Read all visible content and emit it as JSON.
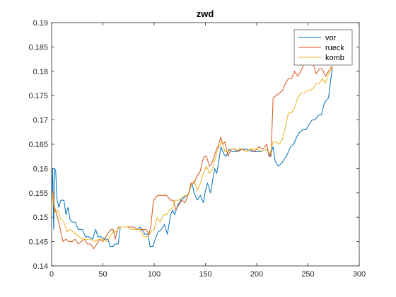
{
  "chart_data": {
    "type": "line",
    "title": "zwd",
    "xlabel": "",
    "ylabel": "",
    "xlim": [
      0,
      300
    ],
    "ylim": [
      0.14,
      0.19
    ],
    "xticks": [
      0,
      50,
      100,
      150,
      200,
      250,
      300
    ],
    "yticks": [
      0.14,
      0.145,
      0.15,
      0.155,
      0.16,
      0.165,
      0.17,
      0.175,
      0.18,
      0.185,
      0.19
    ],
    "ytick_labels": [
      "0.14",
      "0.145",
      "0.15",
      "0.155",
      "0.16",
      "0.165",
      "0.17",
      "0.175",
      "0.18",
      "0.185",
      "0.19"
    ],
    "grid": false,
    "legend_position": "top-right",
    "series": [
      {
        "name": "vor",
        "color": "#0072BD",
        "points": [
          [
            0,
            0.152
          ],
          [
            1,
            0.16
          ],
          [
            2,
            0.1475
          ],
          [
            3,
            0.16
          ],
          [
            4,
            0.1595
          ],
          [
            5,
            0.154
          ],
          [
            7,
            0.152
          ],
          [
            9,
            0.1535
          ],
          [
            12,
            0.1535
          ],
          [
            14,
            0.1505
          ],
          [
            16,
            0.152
          ],
          [
            18,
            0.1495
          ],
          [
            20,
            0.149
          ],
          [
            23,
            0.149
          ],
          [
            26,
            0.1475
          ],
          [
            30,
            0.1475
          ],
          [
            33,
            0.146
          ],
          [
            36,
            0.146
          ],
          [
            40,
            0.1455
          ],
          [
            43,
            0.1475
          ],
          [
            45,
            0.146
          ],
          [
            48,
            0.146
          ],
          [
            52,
            0.1455
          ],
          [
            55,
            0.1455
          ],
          [
            57,
            0.144
          ],
          [
            60,
            0.144
          ],
          [
            62,
            0.1445
          ],
          [
            65,
            0.1445
          ],
          [
            67,
            0.148
          ],
          [
            70,
            0.148
          ],
          [
            75,
            0.148
          ],
          [
            80,
            0.148
          ],
          [
            84,
            0.1475
          ],
          [
            86,
            0.148
          ],
          [
            88,
            0.1475
          ],
          [
            91,
            0.1465
          ],
          [
            94,
            0.1465
          ],
          [
            96,
            0.144
          ],
          [
            99,
            0.144
          ],
          [
            101,
            0.1455
          ],
          [
            104,
            0.147
          ],
          [
            107,
            0.1475
          ],
          [
            110,
            0.1485
          ],
          [
            113,
            0.1465
          ],
          [
            116,
            0.1505
          ],
          [
            118,
            0.1515
          ],
          [
            120,
            0.1505
          ],
          [
            123,
            0.1525
          ],
          [
            126,
            0.1535
          ],
          [
            129,
            0.154
          ],
          [
            132,
            0.1545
          ],
          [
            134,
            0.155
          ],
          [
            137,
            0.157
          ],
          [
            139,
            0.155
          ],
          [
            142,
            0.1535
          ],
          [
            145,
            0.1545
          ],
          [
            148,
            0.153
          ],
          [
            150,
            0.1555
          ],
          [
            152,
            0.157
          ],
          [
            155,
            0.155
          ],
          [
            157,
            0.1575
          ],
          [
            159,
            0.16
          ],
          [
            161,
            0.159
          ],
          [
            163,
            0.1615
          ],
          [
            165,
            0.1645
          ],
          [
            168,
            0.163
          ],
          [
            170,
            0.1625
          ],
          [
            173,
            0.164
          ],
          [
            176,
            0.1635
          ],
          [
            180,
            0.1635
          ],
          [
            185,
            0.164
          ],
          [
            190,
            0.164
          ],
          [
            195,
            0.1635
          ],
          [
            200,
            0.1635
          ],
          [
            205,
            0.1635
          ],
          [
            210,
            0.164
          ],
          [
            213,
            0.1625
          ],
          [
            216,
            0.1645
          ],
          [
            218,
            0.1615
          ],
          [
            221,
            0.1605
          ],
          [
            224,
            0.161
          ],
          [
            227,
            0.162
          ],
          [
            230,
            0.163
          ],
          [
            233,
            0.1645
          ],
          [
            236,
            0.165
          ],
          [
            239,
            0.1665
          ],
          [
            242,
            0.1675
          ],
          [
            245,
            0.168
          ],
          [
            248,
            0.168
          ],
          [
            251,
            0.169
          ],
          [
            254,
            0.17
          ],
          [
            257,
            0.17
          ],
          [
            260,
            0.171
          ],
          [
            263,
            0.171
          ],
          [
            266,
            0.1735
          ],
          [
            268,
            0.174
          ],
          [
            270,
            0.1745
          ],
          [
            272,
            0.178
          ],
          [
            274,
            0.181
          ]
        ]
      },
      {
        "name": "rueck",
        "color": "#D95319",
        "points": [
          [
            0,
            0.152
          ],
          [
            1,
            0.1555
          ],
          [
            3,
            0.152
          ],
          [
            5,
            0.1505
          ],
          [
            8,
            0.148
          ],
          [
            11,
            0.145
          ],
          [
            14,
            0.1455
          ],
          [
            17,
            0.145
          ],
          [
            20,
            0.145
          ],
          [
            23,
            0.1455
          ],
          [
            26,
            0.1445
          ],
          [
            29,
            0.145
          ],
          [
            32,
            0.1455
          ],
          [
            35,
            0.1445
          ],
          [
            38,
            0.1445
          ],
          [
            41,
            0.1435
          ],
          [
            44,
            0.1445
          ],
          [
            47,
            0.1455
          ],
          [
            50,
            0.145
          ],
          [
            53,
            0.146
          ],
          [
            56,
            0.147
          ],
          [
            58,
            0.1475
          ],
          [
            60,
            0.1475
          ],
          [
            62,
            0.1455
          ],
          [
            65,
            0.148
          ],
          [
            68,
            0.148
          ],
          [
            72,
            0.148
          ],
          [
            76,
            0.148
          ],
          [
            80,
            0.148
          ],
          [
            84,
            0.1475
          ],
          [
            88,
            0.1475
          ],
          [
            92,
            0.1475
          ],
          [
            95,
            0.1465
          ],
          [
            97,
            0.1485
          ],
          [
            99,
            0.153
          ],
          [
            101,
            0.154
          ],
          [
            104,
            0.1545
          ],
          [
            108,
            0.1545
          ],
          [
            112,
            0.1545
          ],
          [
            116,
            0.1535
          ],
          [
            119,
            0.1535
          ],
          [
            121,
            0.1515
          ],
          [
            124,
            0.1525
          ],
          [
            127,
            0.1535
          ],
          [
            130,
            0.153
          ],
          [
            133,
            0.1545
          ],
          [
            136,
            0.157
          ],
          [
            139,
            0.157
          ],
          [
            142,
            0.1585
          ],
          [
            145,
            0.1595
          ],
          [
            147,
            0.1615
          ],
          [
            149,
            0.1625
          ],
          [
            151,
            0.1625
          ],
          [
            154,
            0.1605
          ],
          [
            157,
            0.1615
          ],
          [
            160,
            0.1635
          ],
          [
            163,
            0.165
          ],
          [
            165,
            0.1665
          ],
          [
            167,
            0.165
          ],
          [
            169,
            0.1655
          ],
          [
            172,
            0.1625
          ],
          [
            175,
            0.164
          ],
          [
            178,
            0.164
          ],
          [
            182,
            0.1635
          ],
          [
            186,
            0.164
          ],
          [
            190,
            0.1635
          ],
          [
            194,
            0.164
          ],
          [
            198,
            0.1635
          ],
          [
            202,
            0.1645
          ],
          [
            206,
            0.164
          ],
          [
            210,
            0.165
          ],
          [
            212,
            0.1625
          ],
          [
            214,
            0.1625
          ],
          [
            216,
            0.1745
          ],
          [
            219,
            0.175
          ],
          [
            222,
            0.1755
          ],
          [
            225,
            0.176
          ],
          [
            228,
            0.1775
          ],
          [
            231,
            0.1785
          ],
          [
            234,
            0.1785
          ],
          [
            237,
            0.18
          ],
          [
            240,
            0.179
          ],
          [
            243,
            0.18
          ],
          [
            246,
            0.1815
          ],
          [
            249,
            0.1825
          ],
          [
            252,
            0.1825
          ],
          [
            255,
            0.1815
          ],
          [
            258,
            0.1795
          ],
          [
            261,
            0.1805
          ],
          [
            264,
            0.1805
          ],
          [
            267,
            0.179
          ],
          [
            270,
            0.18
          ],
          [
            273,
            0.181
          ]
        ]
      },
      {
        "name": "komb",
        "color": "#EDB120",
        "points": [
          [
            0,
            0.152
          ],
          [
            1,
            0.155
          ],
          [
            3,
            0.151
          ],
          [
            6,
            0.1515
          ],
          [
            9,
            0.1495
          ],
          [
            12,
            0.149
          ],
          [
            15,
            0.147
          ],
          [
            18,
            0.1475
          ],
          [
            21,
            0.147
          ],
          [
            24,
            0.1465
          ],
          [
            27,
            0.146
          ],
          [
            30,
            0.1455
          ],
          [
            34,
            0.1455
          ],
          [
            38,
            0.1455
          ],
          [
            42,
            0.145
          ],
          [
            46,
            0.1455
          ],
          [
            50,
            0.1455
          ],
          [
            54,
            0.145
          ],
          [
            57,
            0.146
          ],
          [
            60,
            0.147
          ],
          [
            63,
            0.147
          ],
          [
            66,
            0.148
          ],
          [
            70,
            0.148
          ],
          [
            74,
            0.148
          ],
          [
            78,
            0.1475
          ],
          [
            82,
            0.1475
          ],
          [
            86,
            0.1475
          ],
          [
            90,
            0.146
          ],
          [
            94,
            0.146
          ],
          [
            97,
            0.147
          ],
          [
            100,
            0.1475
          ],
          [
            103,
            0.15
          ],
          [
            106,
            0.149
          ],
          [
            109,
            0.1505
          ],
          [
            112,
            0.1505
          ],
          [
            115,
            0.1515
          ],
          [
            118,
            0.152
          ],
          [
            121,
            0.1535
          ],
          [
            124,
            0.1535
          ],
          [
            127,
            0.154
          ],
          [
            130,
            0.1545
          ],
          [
            133,
            0.1545
          ],
          [
            136,
            0.1565
          ],
          [
            139,
            0.1575
          ],
          [
            142,
            0.1555
          ],
          [
            145,
            0.157
          ],
          [
            148,
            0.159
          ],
          [
            151,
            0.1605
          ],
          [
            154,
            0.159
          ],
          [
            157,
            0.16
          ],
          [
            160,
            0.1625
          ],
          [
            163,
            0.1645
          ],
          [
            166,
            0.1655
          ],
          [
            169,
            0.1635
          ],
          [
            172,
            0.1635
          ],
          [
            175,
            0.164
          ],
          [
            180,
            0.164
          ],
          [
            185,
            0.164
          ],
          [
            190,
            0.1635
          ],
          [
            195,
            0.164
          ],
          [
            200,
            0.164
          ],
          [
            205,
            0.1635
          ],
          [
            210,
            0.164
          ],
          [
            213,
            0.163
          ],
          [
            216,
            0.1655
          ],
          [
            219,
            0.1655
          ],
          [
            222,
            0.165
          ],
          [
            225,
            0.166
          ],
          [
            228,
            0.1685
          ],
          [
            231,
            0.1715
          ],
          [
            234,
            0.1715
          ],
          [
            237,
            0.1725
          ],
          [
            240,
            0.1745
          ],
          [
            243,
            0.1755
          ],
          [
            246,
            0.1755
          ],
          [
            249,
            0.176
          ],
          [
            252,
            0.176
          ],
          [
            255,
            0.1765
          ],
          [
            258,
            0.1775
          ],
          [
            261,
            0.1775
          ],
          [
            264,
            0.1785
          ],
          [
            267,
            0.1775
          ],
          [
            270,
            0.1795
          ],
          [
            272,
            0.18
          ],
          [
            274,
            0.181
          ]
        ]
      }
    ]
  }
}
